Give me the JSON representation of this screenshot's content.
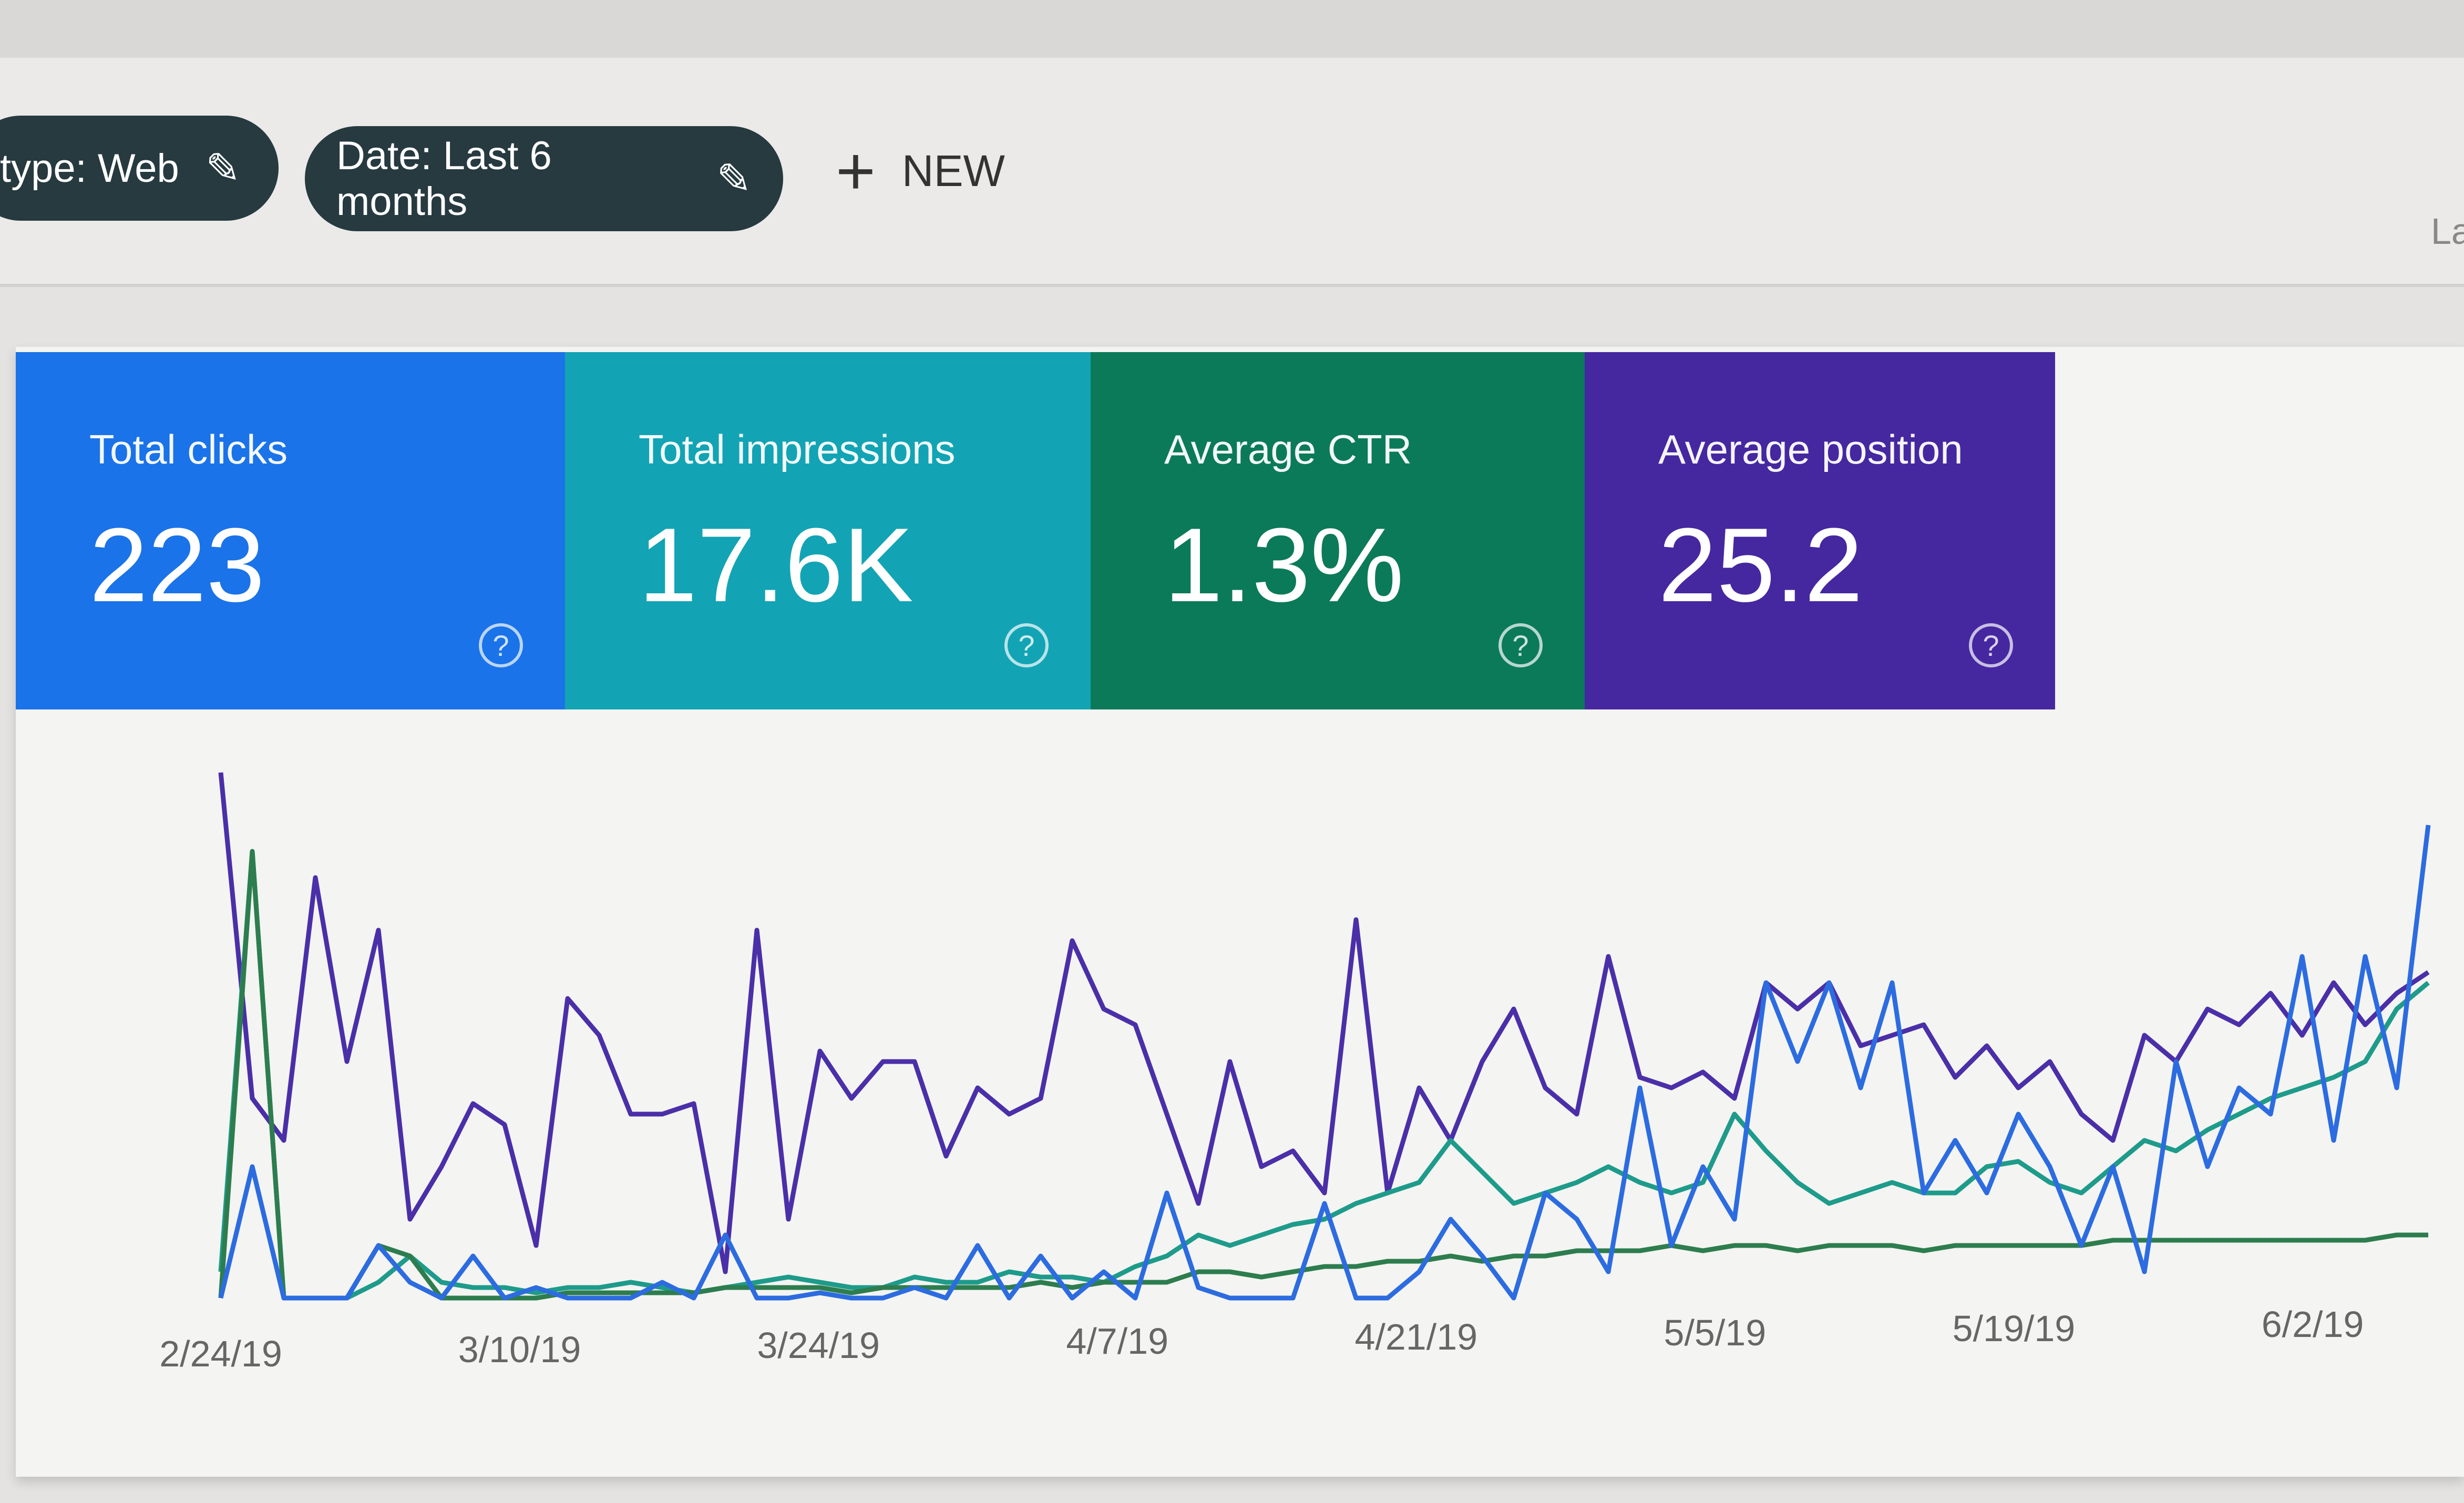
{
  "toolbar": {
    "filters": [
      {
        "label": "type: Web",
        "icon": "pencil-icon"
      },
      {
        "label": "Date: Last 6 months",
        "icon": "pencil-icon"
      }
    ],
    "new_label": "NEW",
    "edge_text": "La"
  },
  "cards": [
    {
      "label": "Total clicks",
      "value": "223",
      "color": "#1a73e8"
    },
    {
      "label": "Total impressions",
      "value": "17.6K",
      "color": "#12a4b4"
    },
    {
      "label": "Average CTR",
      "value": "1.3%",
      "color": "#0b7a58"
    },
    {
      "label": "Average position",
      "value": "25.2",
      "color": "#4527a0"
    }
  ],
  "chart_data": {
    "type": "line",
    "x_ticks": [
      "2/24/19",
      "3/10/19",
      "3/24/19",
      "4/7/19",
      "4/21/19",
      "5/5/19",
      "5/19/19",
      "6/2/19"
    ],
    "grid": false,
    "series": [
      {
        "color": "#4a2fa8",
        "values": [
          100,
          38,
          30,
          80,
          45,
          70,
          15,
          25,
          37,
          33,
          10,
          57,
          50,
          35,
          35,
          37,
          5,
          70,
          15,
          47,
          38,
          45,
          45,
          27,
          40,
          35,
          38,
          68,
          55,
          52,
          35,
          18,
          45,
          25,
          28,
          20,
          72,
          20,
          40,
          30,
          45,
          55,
          40,
          35,
          65,
          42,
          40,
          43,
          38,
          60,
          55,
          60,
          48,
          50,
          52,
          42,
          48,
          40,
          45,
          35,
          30,
          50,
          45,
          55,
          52,
          58,
          50,
          60,
          52,
          58,
          62
        ]
      },
      {
        "color": "#1e9b8a",
        "values": [
          5,
          85,
          0,
          0,
          0,
          3,
          8,
          3,
          2,
          2,
          1,
          2,
          2,
          3,
          2,
          1,
          2,
          3,
          4,
          3,
          2,
          2,
          4,
          3,
          3,
          5,
          4,
          4,
          3,
          6,
          8,
          12,
          10,
          12,
          14,
          15,
          18,
          20,
          22,
          30,
          24,
          18,
          20,
          22,
          25,
          22,
          20,
          22,
          35,
          28,
          22,
          18,
          20,
          22,
          20,
          20,
          25,
          26,
          22,
          20,
          25,
          30,
          28,
          32,
          35,
          38,
          40,
          42,
          45,
          55,
          60
        ]
      },
      {
        "color": "#2d7d4e",
        "values": [
          0,
          85,
          0,
          0,
          0,
          10,
          8,
          0,
          0,
          0,
          0,
          1,
          1,
          1,
          1,
          1,
          2,
          2,
          2,
          2,
          1,
          2,
          2,
          2,
          2,
          2,
          3,
          2,
          3,
          3,
          3,
          5,
          5,
          4,
          5,
          6,
          6,
          7,
          7,
          8,
          7,
          8,
          8,
          9,
          9,
          9,
          10,
          9,
          10,
          10,
          9,
          10,
          10,
          10,
          9,
          10,
          10,
          10,
          10,
          10,
          11,
          11,
          11,
          11,
          11,
          11,
          11,
          11,
          11,
          12,
          12
        ]
      },
      {
        "color": "#2c6ce0",
        "values": [
          0,
          25,
          0,
          0,
          0,
          10,
          3,
          0,
          8,
          0,
          2,
          0,
          0,
          0,
          3,
          0,
          12,
          0,
          0,
          1,
          0,
          0,
          2,
          0,
          10,
          0,
          8,
          0,
          5,
          0,
          20,
          2,
          0,
          0,
          0,
          18,
          0,
          0,
          5,
          15,
          8,
          0,
          20,
          15,
          5,
          40,
          10,
          25,
          15,
          60,
          45,
          60,
          40,
          60,
          20,
          30,
          20,
          35,
          25,
          10,
          25,
          5,
          45,
          25,
          40,
          35,
          65,
          30,
          65,
          40,
          90
        ]
      }
    ]
  }
}
